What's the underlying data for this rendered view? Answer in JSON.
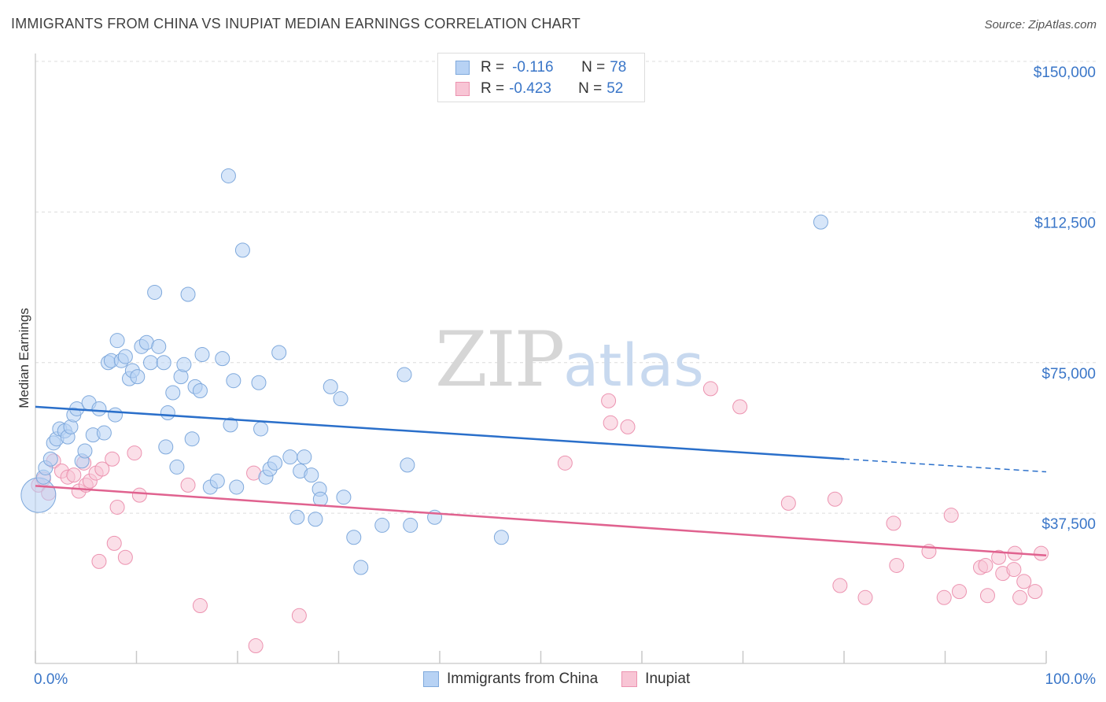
{
  "title": "IMMIGRANTS FROM CHINA VS INUPIAT MEDIAN EARNINGS CORRELATION CHART",
  "source": "Source: ZipAtlas.com",
  "watermark": {
    "zip": "ZIP",
    "atlas": "atlas"
  },
  "legend": {
    "china": {
      "r_label": "R =",
      "r_value": "-0.116",
      "n_label": "N =",
      "n_value": "78"
    },
    "inupiat": {
      "r_label": "R =",
      "r_value": "-0.423",
      "n_label": "N =",
      "n_value": "52"
    }
  },
  "colors": {
    "china_fill": "#b7d2f4",
    "china_stroke": "#7fa9dc",
    "china_line": "#2a6fca",
    "inupiat_fill": "#f8c5d5",
    "inupiat_stroke": "#ec93b0",
    "inupiat_line": "#e0628f",
    "grid": "#dcdcdc",
    "axis_text": "#3a76c8"
  },
  "chart_data": {
    "type": "scatter",
    "title": "IMMIGRANTS FROM CHINA VS INUPIAT MEDIAN EARNINGS CORRELATION CHART",
    "xlabel": "",
    "ylabel": "Median Earnings",
    "xlim": [
      0,
      100
    ],
    "ylim": [
      0,
      155000
    ],
    "x_tick_labels": [
      "0.0%",
      "100.0%"
    ],
    "y_ticks": [
      37500,
      75000,
      112500,
      150000
    ],
    "y_tick_labels": [
      "$37,500",
      "$75,000",
      "$112,500",
      "$150,000"
    ],
    "grid": true,
    "legend_position": "top-center",
    "series": [
      {
        "name": "Immigrants from China",
        "color": "#b7d2f4",
        "trend": {
          "x": [
            0,
            80
          ],
          "y": [
            64000,
            51000
          ],
          "dashed_extension_to_x": 100,
          "dashed_extension_y": 47800
        },
        "points": [
          [
            0.3,
            42000,
            "big"
          ],
          [
            0.8,
            46500
          ],
          [
            1.0,
            48800
          ],
          [
            1.5,
            51000
          ],
          [
            1.8,
            55000
          ],
          [
            2.1,
            56000
          ],
          [
            2.4,
            58500
          ],
          [
            2.9,
            58000
          ],
          [
            3.2,
            56500
          ],
          [
            3.5,
            59000
          ],
          [
            3.8,
            62000
          ],
          [
            4.1,
            63500
          ],
          [
            4.6,
            50500
          ],
          [
            4.9,
            53000
          ],
          [
            5.3,
            65000
          ],
          [
            5.7,
            57000
          ],
          [
            6.3,
            63500
          ],
          [
            6.8,
            57500
          ],
          [
            7.2,
            75000
          ],
          [
            7.5,
            75500
          ],
          [
            7.9,
            62000
          ],
          [
            8.1,
            80500
          ],
          [
            8.5,
            75500
          ],
          [
            8.9,
            76500
          ],
          [
            9.3,
            71000
          ],
          [
            9.6,
            73000
          ],
          [
            10.1,
            71500
          ],
          [
            10.5,
            79000
          ],
          [
            11.0,
            80000
          ],
          [
            11.4,
            75000
          ],
          [
            11.8,
            92500
          ],
          [
            12.2,
            79000
          ],
          [
            12.7,
            75000
          ],
          [
            12.9,
            54000
          ],
          [
            13.1,
            62500
          ],
          [
            13.6,
            67500
          ],
          [
            14.0,
            49000
          ],
          [
            14.4,
            71500
          ],
          [
            14.7,
            74500
          ],
          [
            15.1,
            92000
          ],
          [
            15.5,
            56000
          ],
          [
            15.8,
            69000
          ],
          [
            16.3,
            68000
          ],
          [
            16.5,
            77000
          ],
          [
            17.3,
            44000
          ],
          [
            18.0,
            45500
          ],
          [
            18.5,
            76000
          ],
          [
            19.1,
            121500
          ],
          [
            19.3,
            59500
          ],
          [
            19.6,
            70500
          ],
          [
            19.9,
            44000
          ],
          [
            20.5,
            103000
          ],
          [
            22.1,
            70000
          ],
          [
            22.3,
            58500
          ],
          [
            22.8,
            46500
          ],
          [
            23.2,
            48500
          ],
          [
            23.7,
            50000
          ],
          [
            24.1,
            77500
          ],
          [
            25.2,
            51500
          ],
          [
            25.9,
            36500
          ],
          [
            26.2,
            48000
          ],
          [
            26.6,
            51500
          ],
          [
            27.3,
            47000
          ],
          [
            27.7,
            36000
          ],
          [
            28.1,
            43500
          ],
          [
            28.2,
            41000
          ],
          [
            29.2,
            69000
          ],
          [
            30.2,
            66000
          ],
          [
            30.5,
            41500
          ],
          [
            31.5,
            31500
          ],
          [
            32.2,
            24000
          ],
          [
            34.3,
            34500
          ],
          [
            36.5,
            72000
          ],
          [
            36.8,
            49500
          ],
          [
            37.1,
            34500
          ],
          [
            39.5,
            36500
          ],
          [
            46.1,
            31500
          ],
          [
            77.7,
            110000
          ]
        ]
      },
      {
        "name": "Inupiat",
        "color": "#f8c5d5",
        "trend": {
          "x": [
            0,
            100
          ],
          "y": [
            44300,
            27000
          ]
        },
        "points": [
          [
            0.3,
            44500
          ],
          [
            0.8,
            46000
          ],
          [
            1.3,
            42500
          ],
          [
            1.8,
            50500
          ],
          [
            2.6,
            48000
          ],
          [
            3.2,
            46500
          ],
          [
            3.8,
            47000
          ],
          [
            4.3,
            43000
          ],
          [
            4.8,
            50000
          ],
          [
            5.0,
            44500
          ],
          [
            5.4,
            45500
          ],
          [
            6.0,
            47500
          ],
          [
            6.3,
            25500
          ],
          [
            6.6,
            48500
          ],
          [
            7.6,
            51000
          ],
          [
            7.8,
            30000
          ],
          [
            8.1,
            39000
          ],
          [
            8.9,
            26500
          ],
          [
            9.8,
            52500
          ],
          [
            10.3,
            42000
          ],
          [
            15.1,
            44500
          ],
          [
            16.3,
            14500
          ],
          [
            21.6,
            47500
          ],
          [
            21.8,
            4500
          ],
          [
            26.1,
            12000
          ],
          [
            52.4,
            50000
          ],
          [
            56.7,
            65500
          ],
          [
            56.9,
            60000
          ],
          [
            58.6,
            59000
          ],
          [
            66.8,
            68500
          ],
          [
            69.7,
            64000
          ],
          [
            74.5,
            40000
          ],
          [
            79.1,
            41000
          ],
          [
            79.6,
            19500
          ],
          [
            82.1,
            16500
          ],
          [
            84.9,
            35000
          ],
          [
            85.2,
            24500
          ],
          [
            88.4,
            28000
          ],
          [
            89.9,
            16500
          ],
          [
            90.6,
            37000
          ],
          [
            91.4,
            18000
          ],
          [
            93.5,
            24000
          ],
          [
            94.0,
            24500
          ],
          [
            94.2,
            17000
          ],
          [
            95.3,
            26500
          ],
          [
            95.7,
            22500
          ],
          [
            96.8,
            23500
          ],
          [
            96.9,
            27500
          ],
          [
            97.4,
            16500
          ],
          [
            97.8,
            20500
          ],
          [
            98.9,
            18000
          ],
          [
            99.5,
            27500
          ]
        ]
      }
    ]
  }
}
